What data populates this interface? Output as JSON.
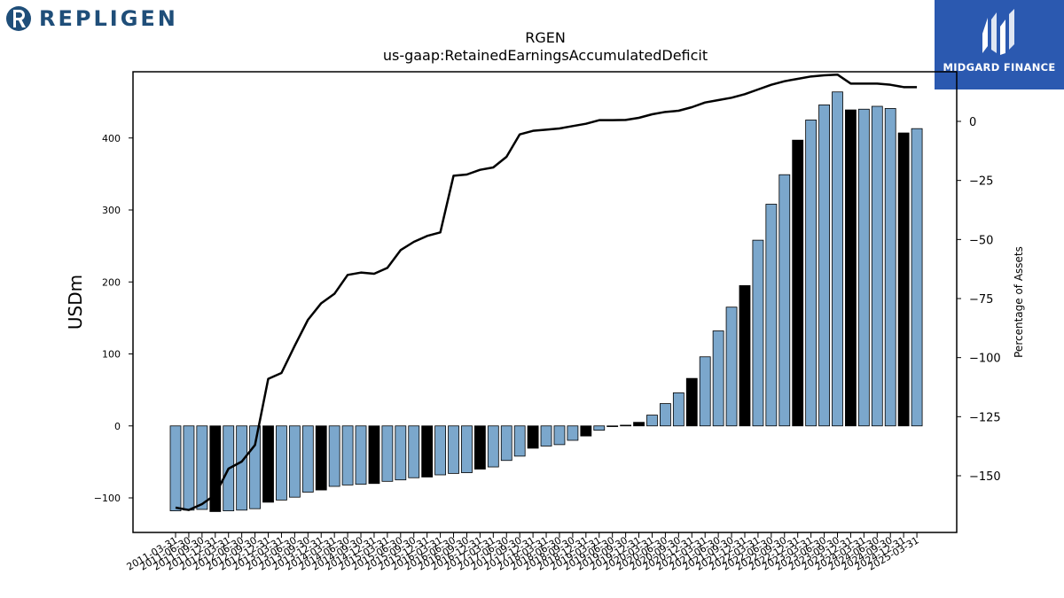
{
  "brand": {
    "name": "REPLIGEN",
    "color": "#1f4e79"
  },
  "badge": {
    "name": "MIDGARD FINANCE",
    "color": "#2b59b0"
  },
  "chart_data": {
    "type": "bar",
    "title": "RGEN",
    "subtitle": "us-gaap:RetainedEarningsAccumulatedDeficit",
    "ylabel": "USDm",
    "y2label": "Percentage of Assets",
    "ylim": [
      -148,
      492
    ],
    "y2lim": [
      -174,
      21
    ],
    "yticks": [
      -100,
      0,
      100,
      200,
      300,
      400
    ],
    "y2ticks": [
      -150,
      -125,
      -100,
      -75,
      -50,
      -25,
      0
    ],
    "colors": {
      "bar": "#7ba7cc",
      "highlight": "#000000",
      "line": "#000000"
    },
    "categories": [
      "2011-03-31",
      "2011-06-30",
      "2011-09-30",
      "2011-12-31",
      "2012-03-31",
      "2012-06-30",
      "2012-09-30",
      "2012-12-31",
      "2013-03-31",
      "2013-06-30",
      "2013-09-30",
      "2013-12-31",
      "2014-03-31",
      "2014-06-30",
      "2014-09-30",
      "2014-12-31",
      "2015-03-31",
      "2015-06-30",
      "2015-09-30",
      "2015-12-31",
      "2016-03-31",
      "2016-06-30",
      "2016-09-30",
      "2016-12-31",
      "2017-03-31",
      "2017-06-30",
      "2017-09-30",
      "2017-12-31",
      "2018-03-31",
      "2018-06-30",
      "2018-09-30",
      "2018-12-31",
      "2019-03-31",
      "2019-06-30",
      "2019-09-30",
      "2019-12-31",
      "2020-03-31",
      "2020-06-30",
      "2020-09-30",
      "2020-12-31",
      "2021-03-31",
      "2021-06-30",
      "2021-09-30",
      "2021-12-31",
      "2022-03-31",
      "2022-06-30",
      "2022-09-30",
      "2022-12-31",
      "2023-03-31",
      "2023-06-30",
      "2023-09-30",
      "2023-12-31",
      "2024-03-31",
      "2024-06-30",
      "2024-09-30",
      "2024-12-31",
      "2025-03-31"
    ],
    "series": [
      {
        "type": "bar",
        "values": [
          -118,
          -117,
          -116,
          -119,
          -118,
          -117,
          -115,
          -106,
          -103,
          -99,
          -92,
          -89,
          -84,
          -82,
          -81,
          -80,
          -77,
          -75,
          -72,
          -71,
          -68,
          -66,
          -65,
          -60,
          -57,
          -48,
          -42,
          -31,
          -28,
          -26,
          -20,
          -14,
          -6,
          -1,
          1,
          5,
          15,
          31,
          46,
          66,
          96,
          132,
          165,
          195,
          258,
          308,
          349,
          397,
          425,
          446,
          464,
          439,
          440,
          444,
          441,
          407,
          413
        ],
        "highlight": [
          false,
          false,
          false,
          true,
          false,
          false,
          false,
          true,
          false,
          false,
          false,
          true,
          false,
          false,
          false,
          true,
          false,
          false,
          false,
          true,
          false,
          false,
          false,
          true,
          false,
          false,
          false,
          true,
          false,
          false,
          false,
          true,
          false,
          false,
          false,
          true,
          false,
          false,
          false,
          true,
          false,
          false,
          false,
          true,
          false,
          false,
          false,
          true,
          false,
          false,
          false,
          true,
          false,
          false,
          false,
          true,
          false
        ]
      },
      {
        "type": "line",
        "axis": "right",
        "values": [
          -163.5,
          -164.5,
          -162,
          -158,
          -147,
          -144,
          -137,
          -109,
          -106.5,
          -95,
          -84,
          -77,
          -73,
          -65,
          -64,
          -64.5,
          -62,
          -54.5,
          -51,
          -48.5,
          -47,
          -23,
          -22.5,
          -20.5,
          -19.5,
          -15,
          -5.5,
          -4,
          -3.5,
          -3,
          -2,
          -1,
          0.5,
          0.5,
          0.6,
          1.5,
          3,
          4,
          4.5,
          6,
          8,
          9,
          10,
          11.5,
          13.5,
          15.5,
          17,
          18,
          19,
          19.5,
          19.8,
          16,
          16,
          16,
          15.5,
          14.5,
          14.5
        ]
      }
    ]
  }
}
